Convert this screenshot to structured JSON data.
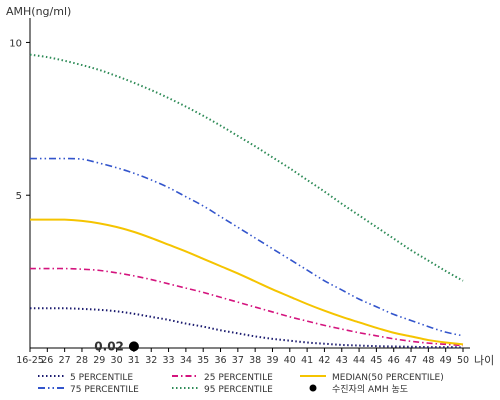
{
  "chart_data": {
    "type": "line",
    "ylabel": "AMH(ng/ml)",
    "xlabel": "나이",
    "ylim": [
      0,
      10.8
    ],
    "categories": [
      "16-25",
      "26",
      "27",
      "28",
      "29",
      "30",
      "31",
      "32",
      "33",
      "34",
      "35",
      "36",
      "37",
      "38",
      "39",
      "40",
      "41",
      "42",
      "43",
      "44",
      "45",
      "46",
      "47",
      "48",
      "49",
      "50"
    ],
    "yticks": [
      5,
      10
    ],
    "series": [
      {
        "name": "5 PERCENTILE",
        "color": "#1a1a6e",
        "dash": "dot",
        "values": [
          1.3,
          1.3,
          1.3,
          1.28,
          1.25,
          1.2,
          1.12,
          1.02,
          0.92,
          0.8,
          0.7,
          0.58,
          0.48,
          0.38,
          0.3,
          0.24,
          0.18,
          0.14,
          0.1,
          0.08,
          0.06,
          0.05,
          0.04,
          0.03,
          0.03,
          0.02
        ]
      },
      {
        "name": "25 PERCENTILE",
        "color": "#d4147e",
        "dash": "dashdot",
        "values": [
          2.6,
          2.6,
          2.6,
          2.58,
          2.54,
          2.46,
          2.36,
          2.24,
          2.1,
          1.96,
          1.82,
          1.66,
          1.5,
          1.34,
          1.18,
          1.02,
          0.88,
          0.74,
          0.62,
          0.5,
          0.4,
          0.3,
          0.22,
          0.16,
          0.12,
          0.08
        ]
      },
      {
        "name": "MEDIAN(50 PERCENTILE)",
        "color": "#f5c400",
        "dash": "solid",
        "values": [
          4.2,
          4.2,
          4.2,
          4.16,
          4.08,
          3.96,
          3.8,
          3.6,
          3.38,
          3.16,
          2.92,
          2.68,
          2.44,
          2.18,
          1.92,
          1.68,
          1.44,
          1.22,
          1.02,
          0.84,
          0.66,
          0.5,
          0.38,
          0.26,
          0.18,
          0.12
        ]
      },
      {
        "name": "75 PERCENTILE",
        "color": "#3355cc",
        "dash": "dashdotdot",
        "values": [
          6.2,
          6.2,
          6.2,
          6.18,
          6.05,
          5.9,
          5.72,
          5.5,
          5.25,
          4.95,
          4.65,
          4.3,
          3.95,
          3.6,
          3.25,
          2.9,
          2.55,
          2.2,
          1.9,
          1.6,
          1.35,
          1.1,
          0.9,
          0.7,
          0.52,
          0.4
        ]
      },
      {
        "name": "95 PERCENTILE",
        "color": "#2e8b57",
        "dash": "dot",
        "values": [
          9.6,
          9.52,
          9.4,
          9.26,
          9.1,
          8.9,
          8.68,
          8.44,
          8.18,
          7.9,
          7.6,
          7.28,
          6.94,
          6.6,
          6.24,
          5.88,
          5.5,
          5.12,
          4.72,
          4.34,
          3.96,
          3.58,
          3.2,
          2.86,
          2.52,
          2.2
        ]
      }
    ],
    "annotation": {
      "name": "수진자의 AMH 농도",
      "x": "31",
      "y": 0.02,
      "label": "0.02",
      "color": "#000000"
    },
    "legend": {
      "placement": "bottom",
      "order": [
        "5 PERCENTILE",
        "25 PERCENTILE",
        "MEDIAN(50 PERCENTILE)",
        "75 PERCENTILE",
        "95 PERCENTILE",
        "수진자의 AMH 농도"
      ]
    }
  }
}
